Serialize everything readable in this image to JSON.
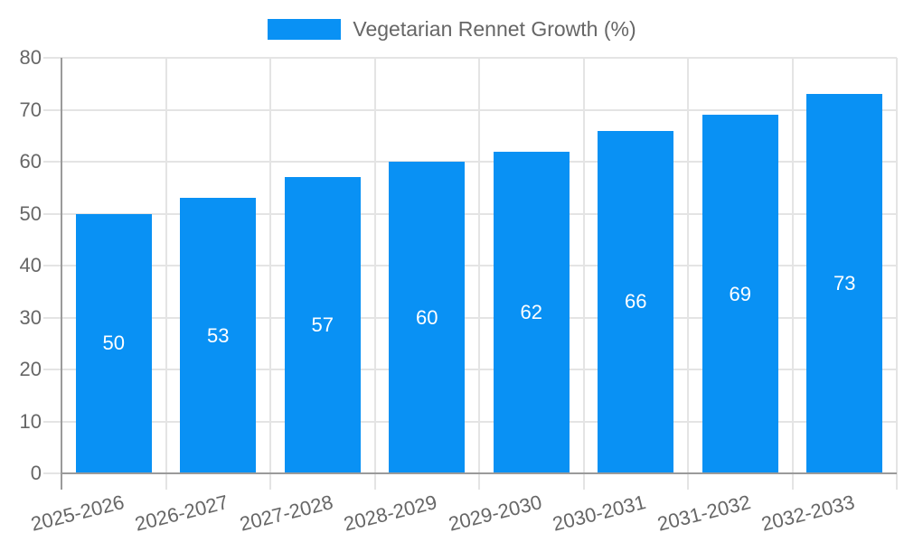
{
  "legend": {
    "label": "Vegetarian Rennet Growth (%)"
  },
  "colors": {
    "bar": "#0991f4",
    "value_label": "#ffffff",
    "tick_text": "#666666",
    "legend_text": "#666666",
    "axis_line": "#9a9a9a",
    "gridline": "#e4e4e4",
    "background": "#ffffff"
  },
  "chart_data": {
    "type": "bar",
    "title": "",
    "xlabel": "",
    "ylabel": "",
    "categories": [
      "2025-2026",
      "2026-2027",
      "2027-2028",
      "2028-2029",
      "2029-2030",
      "2030-2031",
      "2031-2032",
      "2032-2033"
    ],
    "values": [
      50,
      53,
      57,
      60,
      62,
      66,
      69,
      73
    ],
    "series": [
      {
        "name": "Vegetarian Rennet Growth (%)",
        "values": [
          50,
          53,
          57,
          60,
          62,
          66,
          69,
          73
        ]
      }
    ],
    "bar_labels": [
      50,
      53,
      57,
      60,
      62,
      66,
      69,
      73
    ],
    "ylim": [
      0,
      80
    ],
    "yticks": [
      0,
      10,
      20,
      30,
      40,
      50,
      60,
      70,
      80
    ],
    "grid": true,
    "legend_position": "top",
    "x_label_rotation_deg": -14
  }
}
